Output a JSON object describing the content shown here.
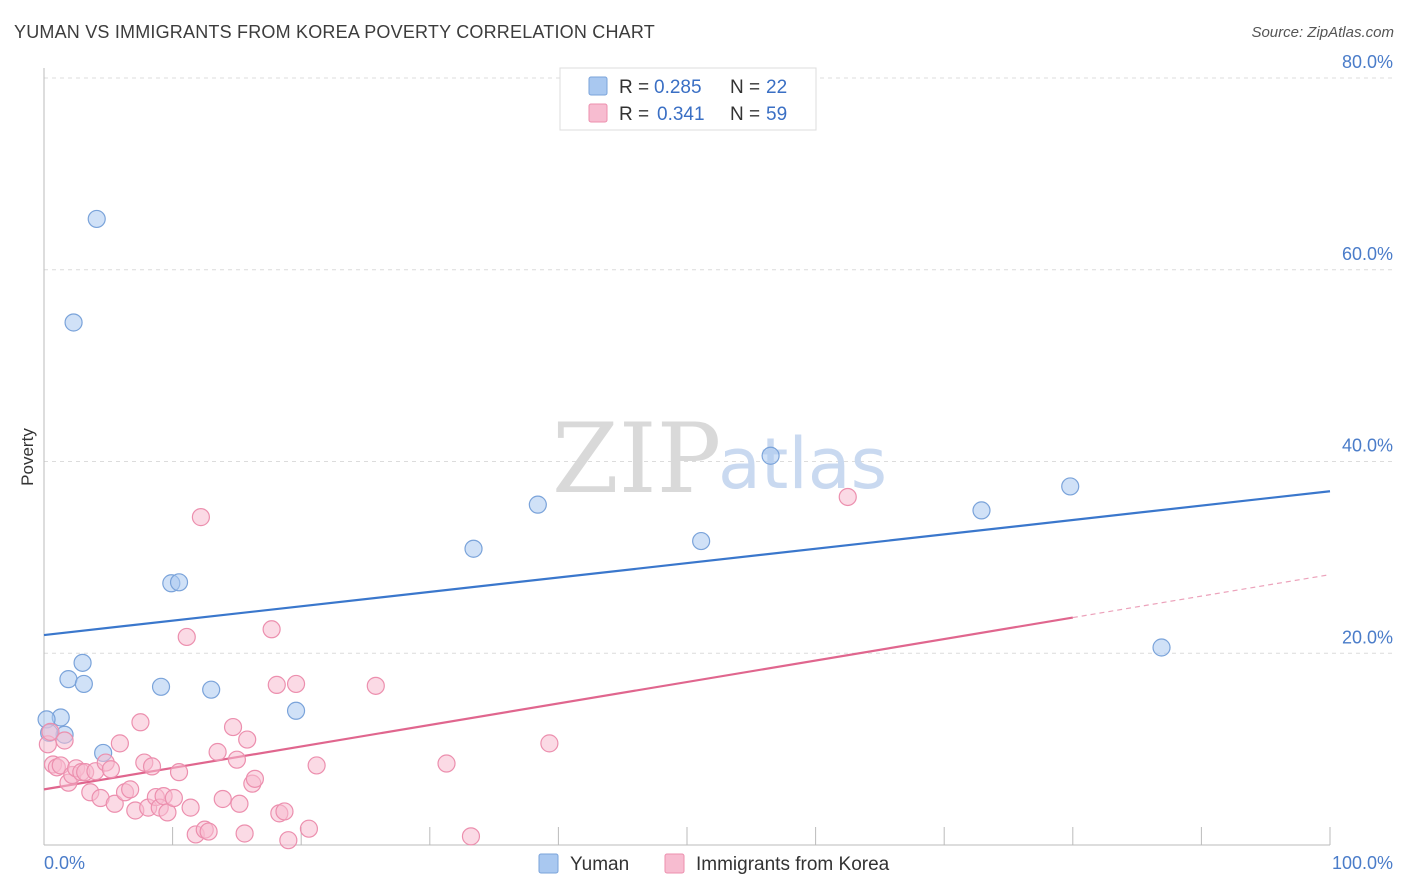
{
  "title": "YUMAN VS IMMIGRANTS FROM KOREA POVERTY CORRELATION CHART",
  "source": "Source: ZipAtlas.com",
  "watermark": {
    "zip": "ZIP",
    "atlas": "atlas"
  },
  "legend_top": [
    {
      "r_label": "R = ",
      "r_value": "0.285",
      "n_label": "N = ",
      "n_value": "22",
      "color": "#a9c8f0",
      "border": "#7aa3da"
    },
    {
      "r_label": "R = ",
      "r_value": "0.341",
      "n_label": "N = ",
      "n_value": "59",
      "color": "#f7bcd0",
      "border": "#ec8fae"
    }
  ],
  "legend_bottom": [
    {
      "label": "Yuman",
      "color": "#a9c8f0",
      "border": "#7aa3da"
    },
    {
      "label": "Immigrants from Korea",
      "color": "#f7bcd0",
      "border": "#ec8fae"
    }
  ],
  "chart_data": {
    "type": "scatter",
    "title": "YUMAN VS IMMIGRANTS FROM KOREA POVERTY CORRELATION CHART",
    "xlabel": "",
    "ylabel": "Poverty",
    "xlim": [
      0,
      100
    ],
    "ylim": [
      0,
      80
    ],
    "x_tick_labels": [
      "0.0%",
      "100.0%"
    ],
    "y_ticks": [
      20,
      40,
      60,
      80
    ],
    "y_tick_labels": [
      "20.0%",
      "40.0%",
      "60.0%",
      "80.0%"
    ],
    "grid": true,
    "series": [
      {
        "name": "Yuman",
        "color": "#7aa3da",
        "fill": "#a9c8f0",
        "line_color": "#3a77cc",
        "trend": {
          "x0": 0,
          "y0": 21.9,
          "x1": 100,
          "y1": 36.9,
          "solid_until": 100
        },
        "points": [
          [
            4.1,
            65.3
          ],
          [
            2.3,
            54.5
          ],
          [
            9.9,
            27.3
          ],
          [
            10.5,
            27.4
          ],
          [
            1.9,
            17.3
          ],
          [
            3.0,
            19.0
          ],
          [
            3.1,
            16.8
          ],
          [
            9.1,
            16.5
          ],
          [
            13.0,
            16.2
          ],
          [
            19.6,
            14.0
          ],
          [
            1.3,
            13.3
          ],
          [
            0.2,
            13.1
          ],
          [
            1.6,
            11.5
          ],
          [
            0.4,
            11.7
          ],
          [
            4.6,
            9.6
          ],
          [
            33.4,
            30.9
          ],
          [
            38.4,
            35.5
          ],
          [
            51.1,
            31.7
          ],
          [
            56.5,
            40.6
          ],
          [
            72.9,
            34.9
          ],
          [
            79.8,
            37.4
          ],
          [
            86.9,
            20.6
          ]
        ]
      },
      {
        "name": "Immigrants from Korea",
        "color": "#ec8fae",
        "fill": "#f7bcd0",
        "line_color": "#e0668e",
        "trend": {
          "x0": 0,
          "y0": 5.8,
          "x1": 100,
          "y1": 28.2,
          "solid_until": 80
        },
        "points": [
          [
            0.3,
            10.5
          ],
          [
            0.5,
            11.8
          ],
          [
            0.7,
            8.4
          ],
          [
            1.0,
            8.1
          ],
          [
            1.3,
            8.3
          ],
          [
            1.6,
            10.9
          ],
          [
            1.9,
            6.5
          ],
          [
            2.2,
            7.3
          ],
          [
            2.5,
            8.0
          ],
          [
            2.9,
            7.6
          ],
          [
            3.2,
            7.6
          ],
          [
            3.6,
            5.5
          ],
          [
            4.0,
            7.7
          ],
          [
            4.4,
            4.9
          ],
          [
            4.8,
            8.6
          ],
          [
            5.2,
            7.9
          ],
          [
            5.5,
            4.3
          ],
          [
            5.9,
            10.6
          ],
          [
            6.3,
            5.5
          ],
          [
            6.7,
            5.8
          ],
          [
            7.1,
            3.6
          ],
          [
            7.5,
            12.8
          ],
          [
            7.8,
            8.6
          ],
          [
            8.1,
            3.9
          ],
          [
            8.4,
            8.2
          ],
          [
            8.7,
            5.0
          ],
          [
            9.0,
            3.9
          ],
          [
            9.3,
            5.1
          ],
          [
            9.6,
            3.4
          ],
          [
            10.1,
            4.9
          ],
          [
            10.5,
            7.6
          ],
          [
            11.1,
            21.7
          ],
          [
            11.4,
            3.9
          ],
          [
            11.8,
            1.1
          ],
          [
            12.2,
            34.2
          ],
          [
            12.5,
            1.6
          ],
          [
            12.8,
            1.4
          ],
          [
            13.5,
            9.7
          ],
          [
            13.9,
            4.8
          ],
          [
            14.7,
            12.3
          ],
          [
            15.0,
            8.9
          ],
          [
            15.2,
            4.3
          ],
          [
            15.6,
            1.2
          ],
          [
            16.2,
            6.4
          ],
          [
            16.4,
            6.9
          ],
          [
            17.7,
            22.5
          ],
          [
            18.1,
            16.7
          ],
          [
            18.3,
            3.3
          ],
          [
            18.7,
            3.5
          ],
          [
            19.0,
            0.5
          ],
          [
            19.6,
            16.8
          ],
          [
            20.6,
            1.7
          ],
          [
            21.2,
            8.3
          ],
          [
            15.8,
            11.0
          ],
          [
            25.8,
            16.6
          ],
          [
            31.3,
            8.5
          ],
          [
            33.2,
            0.9
          ],
          [
            39.3,
            10.6
          ],
          [
            62.5,
            36.3
          ]
        ]
      }
    ]
  }
}
